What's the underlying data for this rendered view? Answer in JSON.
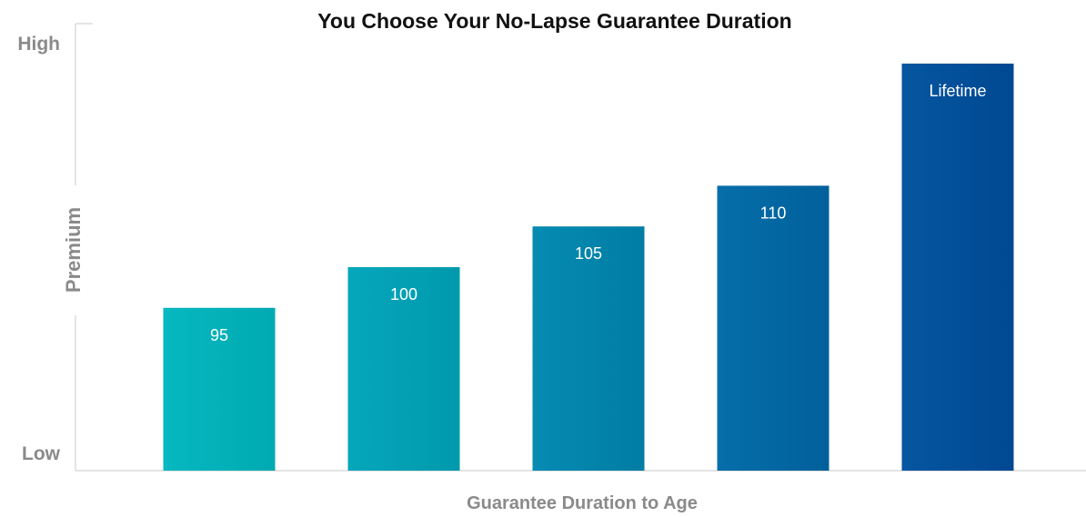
{
  "chart_data": {
    "type": "bar",
    "title": "You Choose Your No-Lapse Guarantee Duration",
    "xlabel": "Guarantee Duration to Age",
    "ylabel": "Premium",
    "y_high_label": "High",
    "y_low_label": "Low",
    "categories": [
      "95",
      "100",
      "105",
      "110",
      "Lifetime"
    ],
    "values": [
      40,
      50,
      60,
      70,
      100
    ],
    "ylim": [
      0,
      100
    ],
    "grid": false,
    "legend": "none",
    "bar_colors": [
      "#00b2ba",
      "#00a1b5",
      "#0085ac",
      "#0068a3",
      "#00509a"
    ]
  }
}
